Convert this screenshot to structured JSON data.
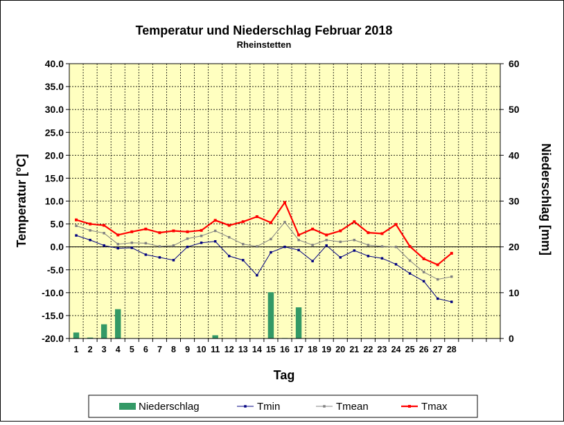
{
  "chart_data": {
    "type": "bar+line",
    "title": "Temperatur und Niederschlag  Februar 2018",
    "subtitle": "Rheinstetten",
    "xlabel": "Tag",
    "ylabel_left": "Temperatur [°C]",
    "ylabel_right": "Niederschlag [mm]",
    "x_categories": [
      1,
      2,
      3,
      4,
      5,
      6,
      7,
      8,
      9,
      10,
      11,
      12,
      13,
      14,
      15,
      16,
      17,
      18,
      19,
      20,
      21,
      22,
      23,
      24,
      25,
      26,
      27,
      28
    ],
    "x_slots": 31,
    "ylim_left": [
      -20,
      40
    ],
    "ylim_right": [
      0,
      60
    ],
    "y_ticks_left": [
      "40.0",
      "35.0",
      "30.0",
      "25.0",
      "20.0",
      "15.0",
      "10.0",
      "5.0",
      "0.0",
      "-5.0",
      "-10.0",
      "-15.0",
      "-20.0"
    ],
    "y_ticks_right": [
      "60",
      "50",
      "40",
      "30",
      "20",
      "10",
      "0"
    ],
    "grid": true,
    "plot_background": "#ffffc0",
    "legend_position": "bottom",
    "series": [
      {
        "name": "Niederschlag",
        "kind": "bar",
        "axis": "right",
        "color": "#339966",
        "values": [
          1.3,
          0.2,
          3.1,
          6.4,
          0,
          0,
          0,
          0,
          0,
          0,
          0.7,
          0,
          0,
          0,
          10.1,
          0.1,
          6.8,
          0,
          0,
          0,
          0,
          0,
          0,
          0,
          0,
          0,
          0,
          0
        ]
      },
      {
        "name": "Tmin",
        "kind": "line",
        "axis": "left",
        "color": "#000080",
        "values": [
          2.5,
          1.5,
          0.3,
          -0.3,
          -0.2,
          -1.7,
          -2.3,
          -2.9,
          0.0,
          0.9,
          1.2,
          -2.0,
          -2.9,
          -6.2,
          -1.2,
          0.0,
          -0.7,
          -3.1,
          0.3,
          -2.3,
          -0.8,
          -2.0,
          -2.5,
          -3.8,
          -5.8,
          -7.5,
          -11.3,
          -12.0
        ]
      },
      {
        "name": "Tmean",
        "kind": "line",
        "axis": "left",
        "color": "#808080",
        "values": [
          4.6,
          3.6,
          3.0,
          0.6,
          0.9,
          0.8,
          0.1,
          0.3,
          1.8,
          2.4,
          3.5,
          2.1,
          0.6,
          0.1,
          1.7,
          5.4,
          1.5,
          0.4,
          1.5,
          1.1,
          1.5,
          0.4,
          0.1,
          0.0,
          -3.0,
          -5.5,
          -7.1,
          -6.5
        ]
      },
      {
        "name": "Tmax",
        "kind": "line",
        "axis": "left",
        "color": "#ff0000",
        "values": [
          5.9,
          5.0,
          4.7,
          2.6,
          3.3,
          3.9,
          3.1,
          3.5,
          3.3,
          3.6,
          5.8,
          4.7,
          5.5,
          6.6,
          5.3,
          9.7,
          2.6,
          3.9,
          2.6,
          3.5,
          5.5,
          3.1,
          2.9,
          4.9,
          0.1,
          -2.6,
          -3.9,
          -1.4
        ]
      }
    ]
  }
}
